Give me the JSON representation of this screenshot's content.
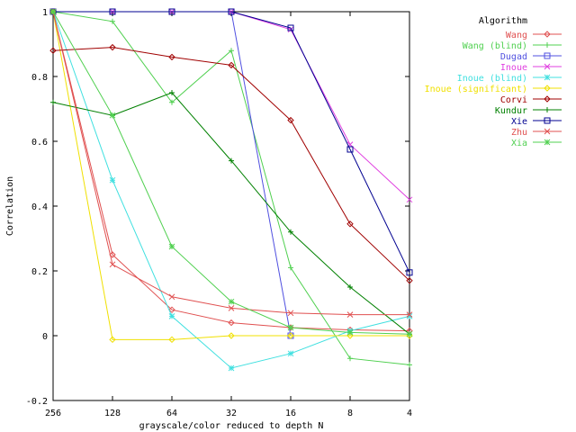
{
  "chart_data": {
    "type": "line",
    "title": "",
    "xlabel": "grayscale/color reduced to depth N",
    "ylabel": "Correlation",
    "x_scale": "log2-reversed",
    "x": [
      256,
      128,
      64,
      32,
      16,
      8,
      4
    ],
    "x_tick_labels": [
      "256",
      "128",
      "64",
      "32",
      "16",
      "8",
      "4"
    ],
    "ylim": [
      -0.2,
      1.0
    ],
    "y_ticks": [
      -0.2,
      0,
      0.2,
      0.4,
      0.6,
      0.8,
      1
    ],
    "y_tick_labels": [
      "-0.2",
      "0",
      "0.2",
      "0.4",
      "0.6",
      "0.8",
      "1"
    ],
    "grid": false,
    "legend_title": "Algorithm",
    "legend_position": "top-right",
    "series": [
      {
        "name": "Wang",
        "color": "#e05050",
        "marker": "diamond",
        "values": [
          1.0,
          0.25,
          0.08,
          0.04,
          0.025,
          0.018,
          0.015
        ]
      },
      {
        "name": "Wang (blind)",
        "color": "#50d050",
        "marker": "plus",
        "values": [
          1.0,
          0.97,
          0.72,
          0.88,
          0.21,
          -0.07,
          -0.09
        ]
      },
      {
        "name": "Dugad",
        "color": "#5050e0",
        "marker": "square",
        "values": [
          1.0,
          1.0,
          1.0,
          1.0,
          0.0,
          null,
          null
        ]
      },
      {
        "name": "Inoue",
        "color": "#e040e0",
        "marker": "cross",
        "values": [
          1.0,
          1.0,
          1.0,
          1.0,
          0.945,
          0.59,
          0.42
        ]
      },
      {
        "name": "Inoue (blind)",
        "color": "#40e0e0",
        "marker": "star",
        "values": [
          1.0,
          0.48,
          0.06,
          -0.1,
          -0.055,
          0.015,
          0.06
        ]
      },
      {
        "name": "Inoue (significant)",
        "color": "#f0e000",
        "marker": "diamond",
        "values": [
          1.0,
          -0.012,
          -0.012,
          0.0,
          0.0,
          0.0,
          0.0
        ]
      },
      {
        "name": "Corvi",
        "color": "#a00000",
        "marker": "diamond",
        "values": [
          0.88,
          0.89,
          0.86,
          0.835,
          0.665,
          0.345,
          0.17
        ]
      },
      {
        "name": "Kundur",
        "color": "#008000",
        "marker": "plus",
        "values": [
          0.72,
          0.68,
          0.75,
          0.54,
          0.32,
          0.15,
          0.005
        ]
      },
      {
        "name": "Xie",
        "color": "#000090",
        "marker": "square",
        "values": [
          1.0,
          1.0,
          1.0,
          1.0,
          0.95,
          0.575,
          0.195
        ]
      },
      {
        "name": "Zhu",
        "color": "#e05050",
        "marker": "cross",
        "values": [
          1.0,
          0.22,
          0.12,
          0.085,
          0.07,
          0.065,
          0.065
        ]
      },
      {
        "name": "Xia",
        "color": "#50d050",
        "marker": "star",
        "values": [
          1.0,
          0.68,
          0.275,
          0.105,
          0.025,
          0.01,
          0.005
        ]
      }
    ]
  }
}
